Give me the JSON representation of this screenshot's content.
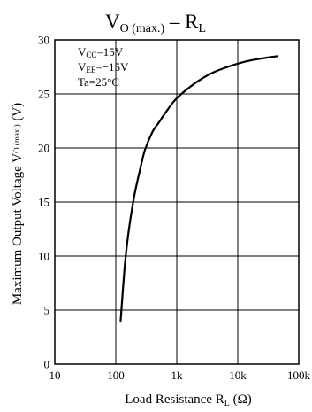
{
  "chart_data": {
    "type": "line",
    "title": {
      "main": "V",
      "sub": "O (max.)",
      "rest": " – R",
      "rest_sub": "L"
    },
    "ylabel": {
      "main": "Maximum Output Voltage  V",
      "sub": "O (max.)",
      "rest": " (V)"
    },
    "xlabel": {
      "main": "Load Resistance  R",
      "sub": "L",
      "rest": " (Ω)"
    },
    "xscale": "log",
    "xlim": [
      10,
      100000
    ],
    "ylim": [
      0,
      30
    ],
    "xticks": [
      {
        "value": 10,
        "label": "10"
      },
      {
        "value": 100,
        "label": "100"
      },
      {
        "value": 1000,
        "label": "1k"
      },
      {
        "value": 10000,
        "label": "10k"
      },
      {
        "value": 100000,
        "label": "100k"
      }
    ],
    "yticks": [
      0,
      5,
      10,
      15,
      20,
      25,
      30
    ],
    "grid": true,
    "conditions": [
      {
        "main": "V",
        "sub": "CC",
        "rest": "=15V"
      },
      {
        "main": "V",
        "sub": "EE",
        "rest": "=−15V"
      },
      {
        "main": "Ta=25°C",
        "sub": "",
        "rest": ""
      }
    ],
    "series": [
      {
        "x": [
          120,
          140,
          160,
          200,
          250,
          300,
          400,
          500,
          700,
          1000,
          2000,
          4000,
          10000,
          20000,
          45000
        ],
        "y": [
          4,
          9,
          12,
          15.5,
          18,
          19.8,
          21.5,
          22.3,
          23.5,
          24.6,
          26.0,
          27.0,
          27.8,
          28.2,
          28.5
        ]
      }
    ]
  }
}
